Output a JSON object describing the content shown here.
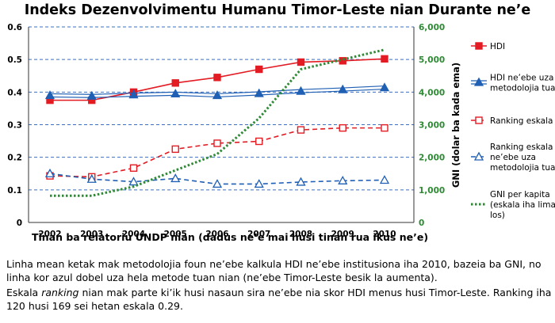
{
  "title": "Indeks Dezenvolvimentu Humanu Timor-Leste nian Durante ne’e",
  "colors": {
    "red": "#e31b23",
    "blue": "#1f5fb4",
    "green": "#2e8a34",
    "grid": "#3a6fc4"
  },
  "chart_data": {
    "type": "line",
    "title": "Indeks Dezenvolvimentu Humanu Timor-Leste nian Durante ne’e",
    "xlabel": "Tinan ba relatoriu UNDP nian (dadus ne’e mai husi tinan rua ikus ne’e)",
    "ylabel_right": "GNI (dolar ba kada ema)",
    "x": [
      "2002",
      "2003",
      "2004",
      "2005",
      "2006",
      "2007",
      "2008",
      "2009",
      "2010"
    ],
    "y_left_ticks": [
      "0",
      "0.1",
      "0.2",
      "0.3",
      "0.4",
      "0.5",
      "0.6"
    ],
    "y_left_lim": [
      0,
      0.6
    ],
    "y_right_ticks": [
      "0",
      "1,000",
      "2,000",
      "3,000",
      "4,000",
      "5,000",
      "6,000"
    ],
    "y_right_lim": [
      0,
      6000
    ],
    "grid": "horizontal dashed",
    "legend_position": "right",
    "series": [
      {
        "name": "HDI",
        "axis": "left",
        "color": "#e31b23",
        "style": "solid",
        "marker": "filled-square",
        "values": [
          0.375,
          0.375,
          0.4,
          0.428,
          0.445,
          0.47,
          0.492,
          0.496,
          0.502
        ]
      },
      {
        "name": "HDI ne’ebe uza metodolojia tuan",
        "axis": "left",
        "color": "#1f5fb4",
        "style": "double",
        "marker": "filled-triangle",
        "values": [
          0.39,
          0.388,
          0.392,
          0.395,
          0.39,
          0.396,
          0.403,
          0.408,
          0.414
        ]
      },
      {
        "name": "Ranking eskala",
        "axis": "left",
        "color": "#e31b23",
        "style": "dashed",
        "marker": "open-square",
        "values": [
          0.143,
          0.14,
          0.167,
          0.225,
          0.243,
          0.249,
          0.284,
          0.29,
          0.29
        ]
      },
      {
        "name": "Ranking eskala ne’ebe uza metodolojia tuan",
        "axis": "left",
        "color": "#1f5fb4",
        "style": "dashed",
        "marker": "open-triangle",
        "values": [
          0.15,
          0.133,
          0.125,
          0.135,
          0.118,
          0.118,
          0.124,
          0.128,
          0.13
        ]
      },
      {
        "name": "GNI per kapita (eskala iha liman los)",
        "axis": "right",
        "color": "#2e8a34",
        "style": "dotted",
        "marker": "none",
        "x_positions": [
          2002,
          2003,
          2004,
          2005,
          2006,
          2007,
          2008,
          2009,
          2010
        ],
        "values": [
          820,
          820,
          1100,
          1600,
          2100,
          3200,
          4700,
          5000,
          5300
        ]
      }
    ]
  },
  "caption": {
    "p1": "Linha mean ketak mak metodolojia foun ne’ebe kalkula HDI ne’ebe institusiona iha 2010, bazeia ba GNI, no linha kor azul dobel uza hela metode tuan nian (ne’ebe Timor-Leste besik la aumenta).",
    "p2_before": "Eskala ",
    "p2_italic": "ranking",
    "p2_after": " nian mak parte ki’ik husi nasaun sira ne’ebe nia skor HDI menus husi Timor-Leste. Ranking iha 120 husi 169 sei hetan eskala 0.29."
  }
}
